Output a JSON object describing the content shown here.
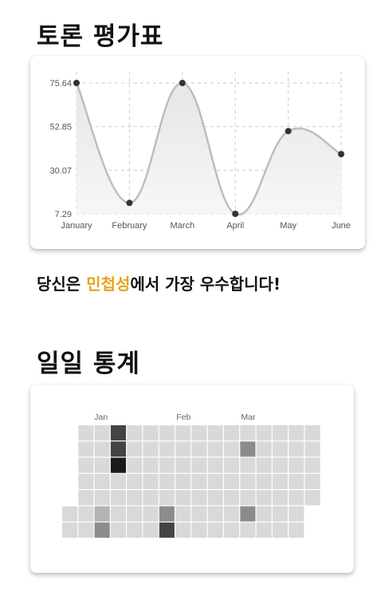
{
  "debate_section": {
    "title": "토론 평가표"
  },
  "chart_data": {
    "type": "line",
    "categories": [
      "January",
      "February",
      "March",
      "April",
      "May",
      "June"
    ],
    "values": [
      75.64,
      13.0,
      75.64,
      7.29,
      50.5,
      38.5
    ],
    "y_ticks": [
      "75.64",
      "52.85",
      "30.07",
      "7.29"
    ],
    "ylim": [
      7.29,
      75.64
    ],
    "smooth": true,
    "area_fill": true,
    "grid": "dashed",
    "line_color": "#bdbdbd",
    "point_color": "#333333"
  },
  "message": {
    "prefix": "당신은 ",
    "highlight": "민첩성",
    "suffix": "에서 가장 우수합니다!",
    "highlight_color": "#e8a317"
  },
  "daily_section": {
    "title": "일일 통계"
  },
  "heatmap": {
    "month_labels": [
      "Jan",
      "Feb",
      "Mar"
    ],
    "rows": [
      [
        null,
        0,
        0,
        3,
        0,
        0,
        0,
        0,
        0,
        0,
        0,
        0,
        0,
        0,
        0,
        0
      ],
      [
        null,
        0,
        0,
        3,
        0,
        0,
        0,
        0,
        0,
        0,
        0,
        2,
        0,
        0,
        0,
        0
      ],
      [
        null,
        0,
        0,
        4,
        0,
        0,
        0,
        0,
        0,
        0,
        0,
        0,
        0,
        0,
        0,
        0
      ],
      [
        null,
        0,
        0,
        0,
        0,
        0,
        0,
        0,
        0,
        0,
        0,
        0,
        0,
        0,
        0,
        0
      ],
      [
        null,
        0,
        0,
        0,
        0,
        0,
        0,
        0,
        0,
        0,
        0,
        0,
        0,
        0,
        0,
        0
      ],
      [
        0,
        0,
        1,
        0,
        0,
        0,
        2,
        0,
        0,
        0,
        0,
        2,
        0,
        0,
        0,
        null
      ],
      [
        0,
        0,
        2,
        0,
        0,
        0,
        3,
        0,
        0,
        0,
        0,
        0,
        0,
        0,
        0,
        null
      ]
    ],
    "level_colors": [
      "#d9d9d9",
      "#b3b3b3",
      "#8c8c8c",
      "#444444",
      "#1a1a1a"
    ]
  }
}
